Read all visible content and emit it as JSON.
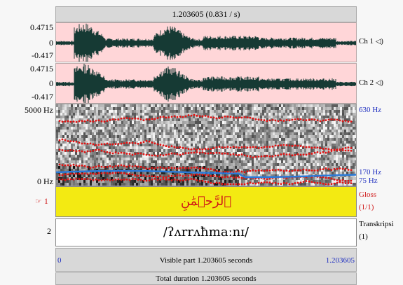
{
  "header": {
    "title": "1.203605 (0.831 / s)"
  },
  "channels": [
    {
      "max_label": "0.4715",
      "zero_label": "0",
      "min_label": "-0.417",
      "name": "Ch 1"
    },
    {
      "max_label": "0.4715",
      "zero_label": "0",
      "min_label": "-0.417",
      "name": "Ch 2"
    }
  ],
  "spectrogram": {
    "top_freq_label": "5000 Hz",
    "bottom_freq_label": "0 Hz",
    "pitch_top_label": "630 Hz",
    "pitch_mid_label": "170 Hz",
    "pitch_bottom_label": "75 Hz"
  },
  "tiers": [
    {
      "number": "1",
      "text": "ٱلرَّحۡمَٰنِ",
      "name": "Gloss",
      "count": "(1/1)",
      "color": "#f3ea12"
    },
    {
      "number": "2",
      "text": "/ʔʌrrʌħmaːnɪ/",
      "name": "Transkripsi",
      "count": "(1)",
      "color": "#ffffff"
    }
  ],
  "visible_part": {
    "start": "0",
    "label": "Visible part 1.203605 seconds",
    "end": "1.203605"
  },
  "total_duration": {
    "label": "Total duration 1.203605 seconds"
  },
  "icons": {
    "speaker": "speaker-icon",
    "pointer": "pointing-hand-icon"
  }
}
